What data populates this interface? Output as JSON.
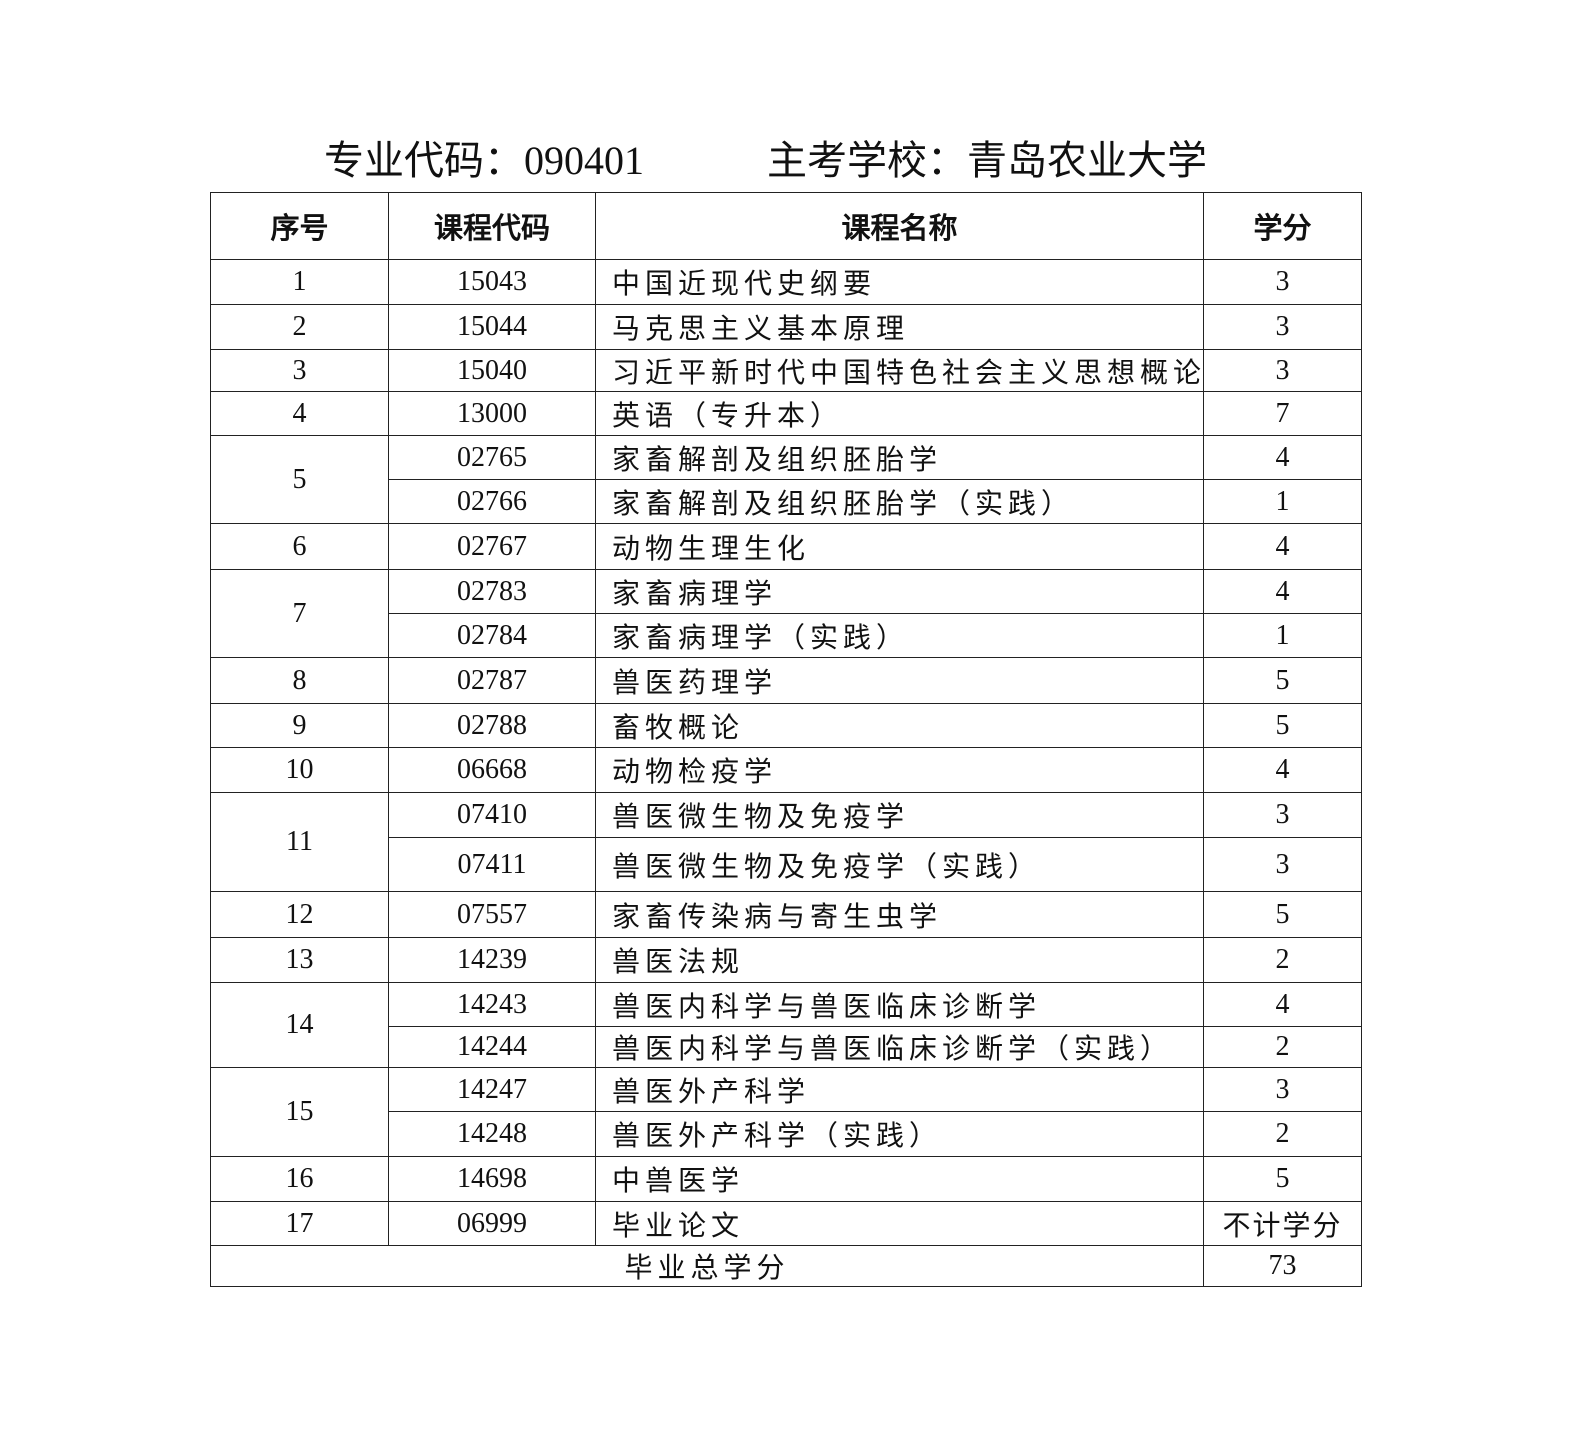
{
  "header": {
    "major_code_label": "专业代码：090401",
    "school_label": "主考学校：青岛农业大学"
  },
  "table": {
    "columns": [
      "序号",
      "课程代码",
      "课程名称",
      "学分"
    ],
    "groups": [
      {
        "no": "1",
        "courses": [
          {
            "code": "15043",
            "name": "中国近现代史纲要",
            "credit": "3"
          }
        ]
      },
      {
        "no": "2",
        "courses": [
          {
            "code": "15044",
            "name": "马克思主义基本原理",
            "credit": "3"
          }
        ]
      },
      {
        "no": "3",
        "courses": [
          {
            "code": "15040",
            "name": "习近平新时代中国特色社会主义思想概论",
            "credit": "3"
          }
        ]
      },
      {
        "no": "4",
        "courses": [
          {
            "code": "13000",
            "name": "英语（专升本）",
            "credit": "7"
          }
        ]
      },
      {
        "no": "5",
        "courses": [
          {
            "code": "02765",
            "name": "家畜解剖及组织胚胎学",
            "credit": "4"
          },
          {
            "code": "02766",
            "name": "家畜解剖及组织胚胎学（实践）",
            "credit": "1"
          }
        ]
      },
      {
        "no": "6",
        "courses": [
          {
            "code": "02767",
            "name": "动物生理生化",
            "credit": "4"
          }
        ]
      },
      {
        "no": "7",
        "courses": [
          {
            "code": "02783",
            "name": "家畜病理学",
            "credit": "4"
          },
          {
            "code": "02784",
            "name": "家畜病理学（实践）",
            "credit": "1"
          }
        ]
      },
      {
        "no": "8",
        "courses": [
          {
            "code": "02787",
            "name": "兽医药理学",
            "credit": "5"
          }
        ]
      },
      {
        "no": "9",
        "courses": [
          {
            "code": "02788",
            "name": "畜牧概论",
            "credit": "5"
          }
        ]
      },
      {
        "no": "10",
        "courses": [
          {
            "code": "06668",
            "name": "动物检疫学",
            "credit": "4"
          }
        ]
      },
      {
        "no": "11",
        "courses": [
          {
            "code": "07410",
            "name": "兽医微生物及免疫学",
            "credit": "3"
          },
          {
            "code": "07411",
            "name": "兽医微生物及免疫学（实践）",
            "credit": "3"
          }
        ]
      },
      {
        "no": "12",
        "courses": [
          {
            "code": "07557",
            "name": "家畜传染病与寄生虫学",
            "credit": "5"
          }
        ]
      },
      {
        "no": "13",
        "courses": [
          {
            "code": "14239",
            "name": "兽医法规",
            "credit": "2"
          }
        ]
      },
      {
        "no": "14",
        "courses": [
          {
            "code": "14243",
            "name": "兽医内科学与兽医临床诊断学",
            "credit": "4"
          },
          {
            "code": "14244",
            "name": "兽医内科学与兽医临床诊断学（实践）",
            "credit": "2"
          }
        ]
      },
      {
        "no": "15",
        "courses": [
          {
            "code": "14247",
            "name": "兽医外产科学",
            "credit": "3"
          },
          {
            "code": "14248",
            "name": "兽医外产科学（实践）",
            "credit": "2"
          }
        ]
      },
      {
        "no": "16",
        "courses": [
          {
            "code": "14698",
            "name": "中兽医学",
            "credit": "5"
          }
        ]
      },
      {
        "no": "17",
        "courses": [
          {
            "code": "06999",
            "name": "毕业论文",
            "credit": "不计学分"
          }
        ]
      }
    ],
    "total": {
      "label": "毕业总学分",
      "value": "73"
    }
  }
}
